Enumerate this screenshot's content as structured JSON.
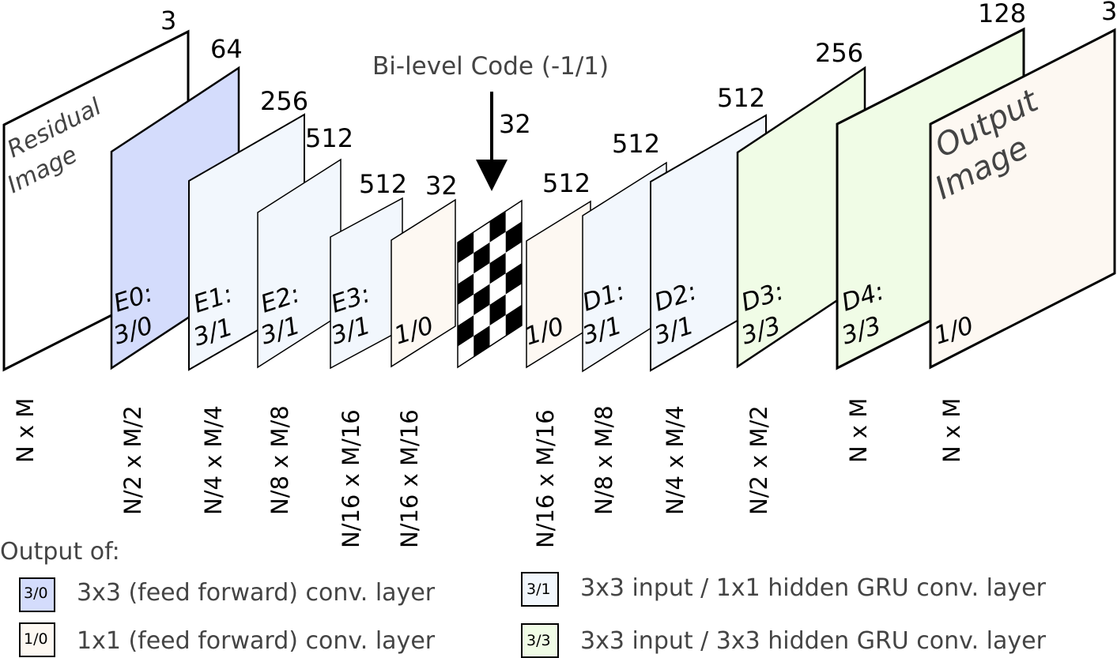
{
  "colors": {
    "ff_3x3": "#d4dcfc",
    "ff_1x1": "#fdf8f2",
    "gru_3x1": "#f2f7fd",
    "gru_3x3": "#f0fce6",
    "plain": "#ffffff"
  },
  "code": {
    "title": "Bi-level Code (-1/1)",
    "arrow_label": "32"
  },
  "layers": [
    {
      "id": "residual",
      "depth": "3",
      "name": "Residual",
      "name2": "Image",
      "label": "",
      "label2": "",
      "size": "N x M",
      "color": "plain"
    },
    {
      "id": "e0",
      "depth": "64",
      "name": "",
      "name2": "",
      "label": "E0:",
      "label2": "3/0",
      "size": "N/2 x M/2",
      "color": "ff_3x3"
    },
    {
      "id": "e1",
      "depth": "256",
      "name": "",
      "name2": "",
      "label": "E1:",
      "label2": "3/1",
      "size": "N/4 x M/4",
      "color": "gru_3x1"
    },
    {
      "id": "e2",
      "depth": "512",
      "name": "",
      "name2": "",
      "label": "E2:",
      "label2": "3/1",
      "size": "N/8 x M/8",
      "color": "gru_3x1"
    },
    {
      "id": "e3",
      "depth": "512",
      "name": "",
      "name2": "",
      "label": "E3:",
      "label2": "3/1",
      "size": "N/16 x M/16",
      "color": "gru_3x1"
    },
    {
      "id": "b",
      "depth": "32",
      "name": "",
      "name2": "",
      "label": "",
      "label2": "1/0",
      "size": "N/16 x M/16",
      "color": "ff_1x1"
    },
    {
      "id": "code",
      "depth": "",
      "name": "",
      "name2": "",
      "label": "",
      "label2": "",
      "size": "",
      "color": "plain"
    },
    {
      "id": "d0",
      "depth": "512",
      "name": "",
      "name2": "",
      "label": "",
      "label2": "1/0",
      "size": "N/16 x M/16",
      "color": "ff_1x1"
    },
    {
      "id": "d1",
      "depth": "512",
      "name": "",
      "name2": "",
      "label": "D1:",
      "label2": "3/1",
      "size": "N/8 x M/8",
      "color": "gru_3x1"
    },
    {
      "id": "d2",
      "depth": "512",
      "name": "",
      "name2": "",
      "label": "D2:",
      "label2": "3/1",
      "size": "N/4 x M/4",
      "color": "gru_3x1"
    },
    {
      "id": "d3",
      "depth": "256",
      "name": "",
      "name2": "",
      "label": "D3:",
      "label2": "3/3",
      "size": "N/2 x M/2",
      "color": "gru_3x3"
    },
    {
      "id": "d4",
      "depth": "128",
      "name": "",
      "name2": "",
      "label": "D4:",
      "label2": "3/3",
      "size": "N x M",
      "color": "gru_3x3"
    },
    {
      "id": "output",
      "depth": "3",
      "name": "Output",
      "name2": "Image",
      "label": "",
      "label2": "1/0",
      "size": "N x M",
      "color": "ff_1x1"
    }
  ],
  "legend": {
    "heading": "Output of:",
    "items": [
      {
        "swatch": "3/0",
        "text": "3x3 (feed forward) conv. layer",
        "color": "ff_3x3"
      },
      {
        "swatch": "1/0",
        "text": "1x1 (feed forward) conv. layer",
        "color": "ff_1x1"
      },
      {
        "swatch": "3/1",
        "text": "3x3 input / 1x1 hidden GRU conv. layer",
        "color": "gru_3x1"
      },
      {
        "swatch": "3/3",
        "text": "3x3 input / 3x3 hidden GRU conv. layer",
        "color": "gru_3x3"
      }
    ]
  }
}
